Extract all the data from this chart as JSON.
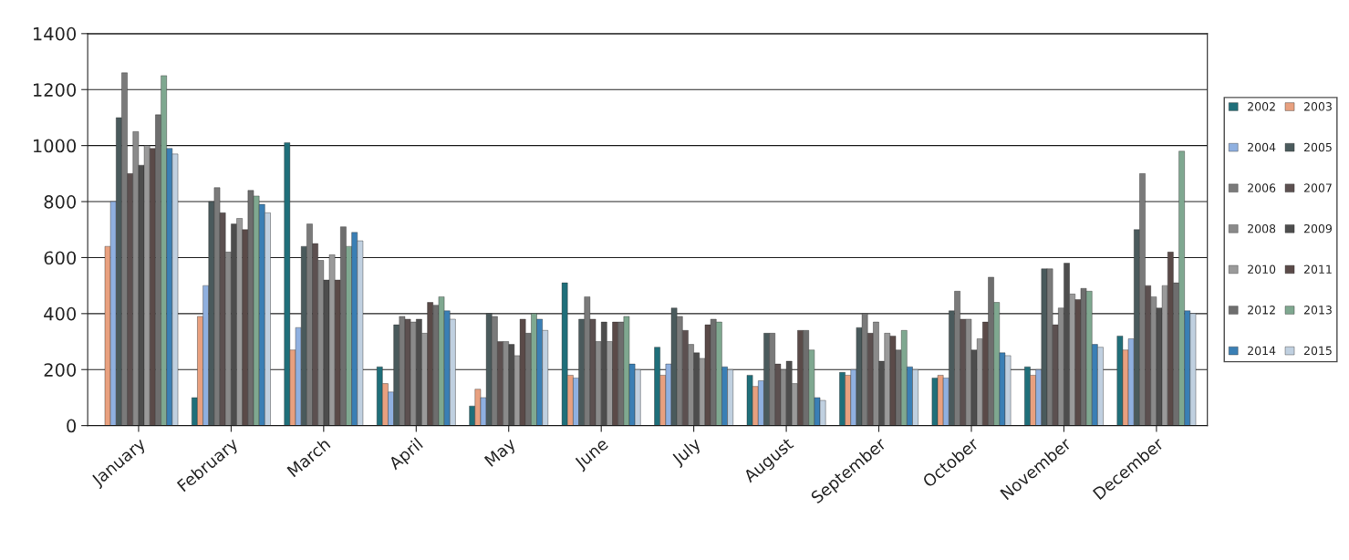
{
  "chart_data": {
    "type": "bar",
    "categories": [
      "January",
      "February",
      "March",
      "April",
      "May",
      "June",
      "July",
      "August",
      "September",
      "October",
      "November",
      "December"
    ],
    "series": [
      {
        "name": "2002",
        "color": "#1f6f7a",
        "values": [
          null,
          100,
          1010,
          210,
          70,
          510,
          280,
          180,
          190,
          170,
          210,
          320
        ]
      },
      {
        "name": "2003",
        "color": "#e8a07f",
        "values": [
          640,
          390,
          270,
          150,
          130,
          180,
          180,
          140,
          180,
          180,
          180,
          270
        ]
      },
      {
        "name": "2004",
        "color": "#8fb0e0",
        "values": [
          800,
          500,
          350,
          120,
          100,
          170,
          220,
          160,
          200,
          170,
          200,
          310
        ]
      },
      {
        "name": "2005",
        "color": "#4a5a5c",
        "values": [
          1100,
          800,
          640,
          360,
          400,
          380,
          420,
          330,
          350,
          410,
          560,
          700
        ]
      },
      {
        "name": "2006",
        "color": "#7a7a7a",
        "values": [
          1260,
          850,
          720,
          390,
          390,
          460,
          390,
          330,
          400,
          480,
          560,
          900
        ]
      },
      {
        "name": "2007",
        "color": "#5c5050",
        "values": [
          900,
          760,
          650,
          380,
          300,
          380,
          340,
          220,
          330,
          380,
          360,
          500
        ]
      },
      {
        "name": "2008",
        "color": "#8a8a8a",
        "values": [
          1050,
          620,
          590,
          370,
          300,
          300,
          290,
          200,
          370,
          380,
          420,
          460
        ]
      },
      {
        "name": "2009",
        "color": "#4d4d4d",
        "values": [
          930,
          720,
          520,
          380,
          290,
          370,
          260,
          230,
          230,
          270,
          580,
          420
        ]
      },
      {
        "name": "2010",
        "color": "#9a9a9a",
        "values": [
          1000,
          740,
          610,
          330,
          250,
          300,
          240,
          150,
          330,
          310,
          470,
          500
        ]
      },
      {
        "name": "2011",
        "color": "#5a4a48",
        "values": [
          990,
          700,
          520,
          440,
          380,
          370,
          360,
          340,
          320,
          370,
          450,
          620
        ]
      },
      {
        "name": "2012",
        "color": "#6e6e6e",
        "values": [
          1110,
          840,
          710,
          430,
          330,
          370,
          380,
          340,
          270,
          530,
          490,
          510
        ]
      },
      {
        "name": "2013",
        "color": "#7fa890",
        "values": [
          1250,
          820,
          640,
          460,
          400,
          390,
          370,
          270,
          340,
          440,
          480,
          980
        ]
      },
      {
        "name": "2014",
        "color": "#3a7fb5",
        "values": [
          990,
          790,
          690,
          410,
          380,
          220,
          210,
          100,
          210,
          260,
          290,
          410
        ]
      },
      {
        "name": "2015",
        "color": "#c0d0e0",
        "values": [
          970,
          760,
          660,
          380,
          340,
          200,
          200,
          90,
          200,
          250,
          280,
          400
        ]
      }
    ],
    "ylim": [
      0,
      1400
    ],
    "yticks": [
      0,
      200,
      400,
      600,
      800,
      1000,
      1200,
      1400
    ],
    "grid": "y",
    "legend": "right"
  }
}
